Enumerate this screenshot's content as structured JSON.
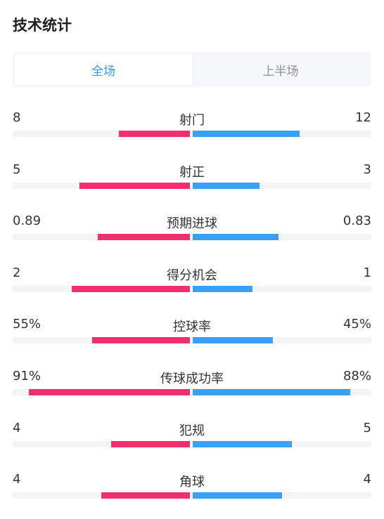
{
  "title": "技术统计",
  "tabs": [
    {
      "label": "全场",
      "active": true
    },
    {
      "label": "上半场",
      "active": false
    }
  ],
  "colors": {
    "home": "#f22e6c",
    "away": "#3aa0f5",
    "track": "#f3f4f6",
    "active_tab": "#2d9bf0"
  },
  "stats": [
    {
      "label": "射门",
      "home": "8",
      "away": "12",
      "home_fill": 0.4,
      "away_fill": 0.6
    },
    {
      "label": "射正",
      "home": "5",
      "away": "3",
      "home_fill": 0.625,
      "away_fill": 0.375
    },
    {
      "label": "预期进球",
      "home": "0.89",
      "away": "0.83",
      "home_fill": 0.52,
      "away_fill": 0.48
    },
    {
      "label": "得分机会",
      "home": "2",
      "away": "1",
      "home_fill": 0.667,
      "away_fill": 0.333
    },
    {
      "label": "控球率",
      "home": "55%",
      "away": "45%",
      "home_fill": 0.55,
      "away_fill": 0.45
    },
    {
      "label": "传球成功率",
      "home": "91%",
      "away": "88%",
      "home_fill": 0.91,
      "away_fill": 0.88
    },
    {
      "label": "犯规",
      "home": "4",
      "away": "5",
      "home_fill": 0.444,
      "away_fill": 0.556
    },
    {
      "label": "角球",
      "home": "4",
      "away": "4",
      "home_fill": 0.5,
      "away_fill": 0.5
    }
  ]
}
